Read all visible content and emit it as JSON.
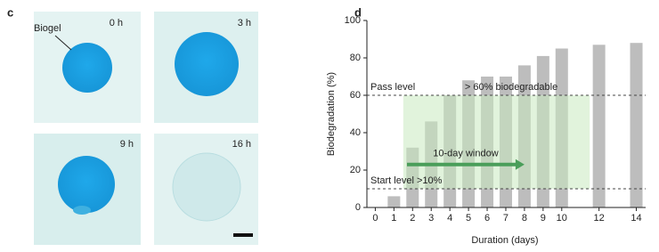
{
  "panel_c": {
    "label": "c",
    "callout": "Biogel",
    "scale_bar": true,
    "images": [
      {
        "time": "0 h"
      },
      {
        "time": "3 h"
      },
      {
        "time": "9 h"
      },
      {
        "time": "16 h"
      }
    ]
  },
  "chart_data": {
    "type": "bar",
    "panel_label": "d",
    "xlabel": "Duration (days)",
    "ylabel": "Biodegradation (%)",
    "x": [
      0,
      1,
      2,
      3,
      4,
      5,
      6,
      7,
      8,
      9,
      10,
      12,
      14
    ],
    "values": [
      0,
      6,
      32,
      46,
      60,
      68,
      70,
      70,
      76,
      81,
      85,
      87,
      88
    ],
    "color": "#bdbdbd",
    "xlim": [
      -0.45,
      14.5
    ],
    "ylim": [
      0,
      100
    ],
    "xticks": [
      0,
      1,
      2,
      3,
      4,
      5,
      6,
      7,
      8,
      9,
      10,
      12,
      14
    ],
    "yticks": [
      0,
      20,
      40,
      60,
      80,
      100
    ],
    "reference_lines": [
      {
        "value": 60,
        "label": "Pass level"
      },
      {
        "value": 10,
        "label": "Start level >10%"
      }
    ],
    "annotation": "> 60% biodegradable",
    "window": {
      "x": [
        1.5,
        11.5
      ],
      "y": [
        10,
        60
      ],
      "label": "10-day window",
      "arrow_x": [
        1.7,
        8
      ],
      "arrow_y": 23,
      "color": "#c8eac0"
    }
  }
}
